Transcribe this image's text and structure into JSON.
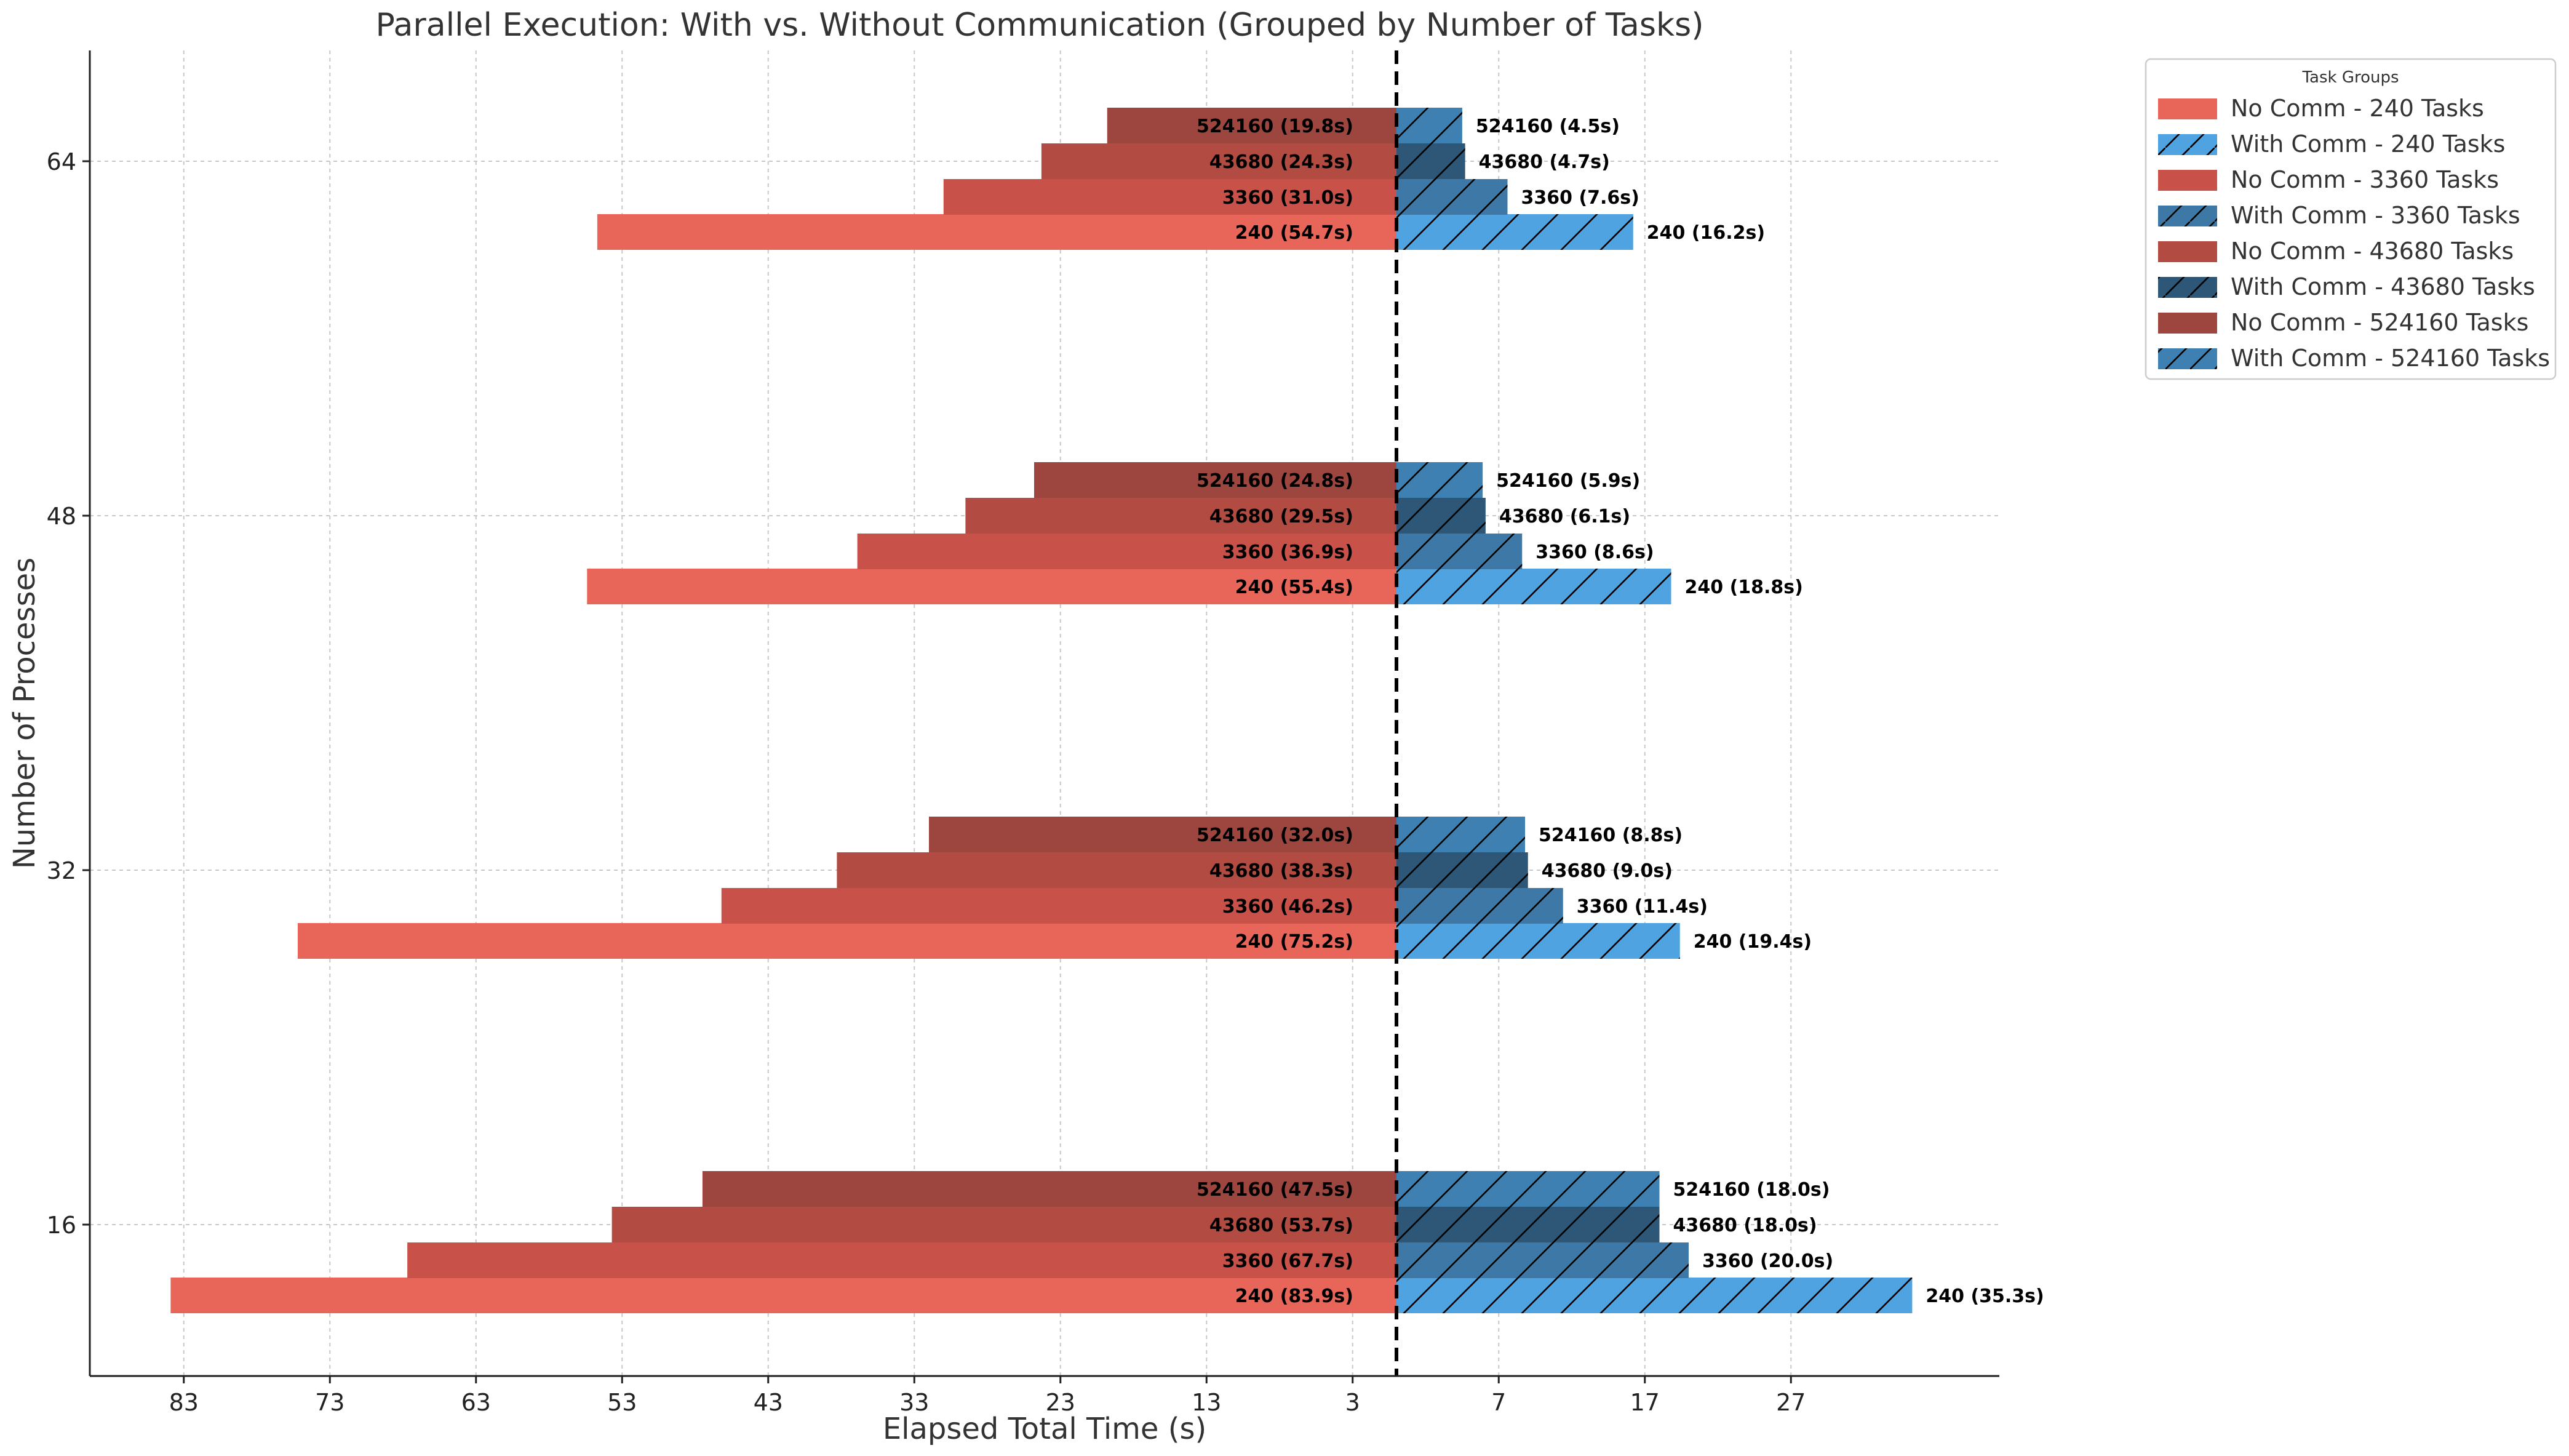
{
  "chart_data": {
    "type": "bar",
    "orientation": "horizontal-diverging",
    "title": "Parallel Execution: With vs. Without Communication (Grouped by Number of Tasks)",
    "xlabel": "Elapsed Total Time (s)",
    "ylabel": "Number of Processes",
    "processes": [
      16,
      32,
      48,
      64
    ],
    "task_counts": [
      240,
      3360,
      43680,
      524160
    ],
    "x_ticks_left": [
      83,
      73,
      63,
      53,
      43,
      33,
      23,
      13,
      3
    ],
    "x_ticks_right": [
      7,
      17,
      27
    ],
    "xlim": [
      -83.9,
      35.3
    ],
    "grid": true,
    "legend": {
      "title": "Task Groups",
      "placement": "outside-top-right"
    },
    "series": [
      {
        "name": "No Comm - 240 Tasks",
        "side": "left",
        "tasks": 240,
        "color": "#e8655a",
        "hatch": false,
        "values": [
          83.9,
          75.2,
          55.4,
          54.7
        ]
      },
      {
        "name": "With Comm - 240 Tasks",
        "side": "right",
        "tasks": 240,
        "color": "#4ea3e0",
        "hatch": true,
        "values": [
          35.3,
          19.4,
          18.8,
          16.2
        ]
      },
      {
        "name": "No Comm - 3360 Tasks",
        "side": "left",
        "tasks": 3360,
        "color": "#c8524a",
        "hatch": false,
        "values": [
          67.7,
          46.2,
          36.9,
          31.0
        ]
      },
      {
        "name": "With Comm - 3360 Tasks",
        "side": "right",
        "tasks": 3360,
        "color": "#3d78a6",
        "hatch": true,
        "values": [
          20.0,
          11.4,
          8.6,
          7.6
        ]
      },
      {
        "name": "No Comm - 43680 Tasks",
        "side": "left",
        "tasks": 43680,
        "color": "#b24b42",
        "hatch": false,
        "values": [
          53.7,
          38.3,
          29.5,
          24.3
        ]
      },
      {
        "name": "With Comm - 43680 Tasks",
        "side": "right",
        "tasks": 43680,
        "color": "#2d5677",
        "hatch": true,
        "values": [
          18.0,
          9.0,
          6.1,
          4.7
        ]
      },
      {
        "name": "No Comm - 524160 Tasks",
        "side": "left",
        "tasks": 524160,
        "color": "#9d4640",
        "hatch": false,
        "values": [
          47.5,
          32.0,
          24.8,
          19.8
        ]
      },
      {
        "name": "With Comm - 524160 Tasks",
        "side": "right",
        "tasks": 524160,
        "color": "#3e80b2",
        "hatch": true,
        "values": [
          18.0,
          8.8,
          5.9,
          4.5
        ]
      }
    ]
  }
}
